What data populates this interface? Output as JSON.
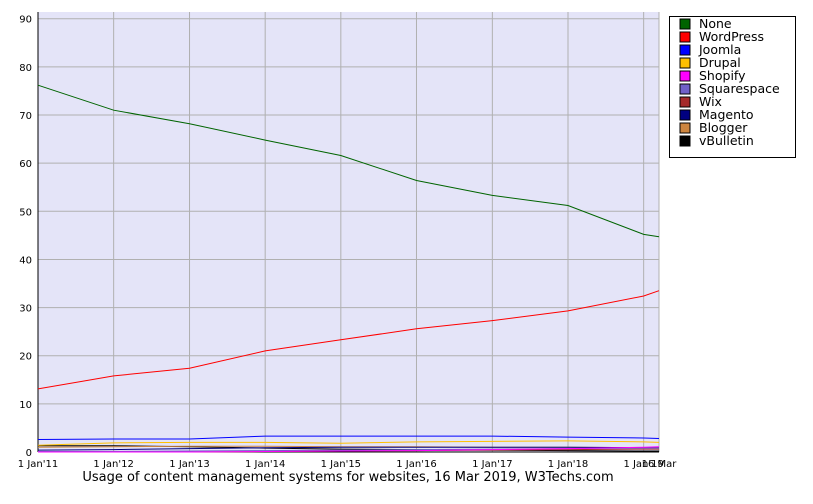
{
  "chart_data": {
    "type": "line",
    "title": "Usage of content management systems for websites, 16 Mar 2019, W3Techs.com",
    "x": [
      "2011-01-01",
      "2012-01-01",
      "2013-01-01",
      "2014-01-01",
      "2015-01-01",
      "2016-01-01",
      "2017-01-01",
      "2018-01-01",
      "2019-01-01",
      "2019-03-16"
    ],
    "xlim": [
      "2011-01-01",
      "2019-03-16"
    ],
    "xticks": [
      {
        "value": "2011-01-01",
        "label": "1 Jan'11"
      },
      {
        "value": "2012-01-01",
        "label": "1 Jan'12"
      },
      {
        "value": "2013-01-01",
        "label": "1 Jan'13"
      },
      {
        "value": "2014-01-01",
        "label": "1 Jan'14"
      },
      {
        "value": "2015-01-01",
        "label": "1 Jan'15"
      },
      {
        "value": "2016-01-01",
        "label": "1 Jan'16"
      },
      {
        "value": "2017-01-01",
        "label": "1 Jan'17"
      },
      {
        "value": "2018-01-01",
        "label": "1 Jan'18"
      },
      {
        "value": "2019-01-01",
        "label": "1 Jan'19"
      },
      {
        "value": "2019-03-16",
        "label": "16 Mar"
      }
    ],
    "ylim": [
      0,
      91.4
    ],
    "yticks": [
      0,
      10,
      20,
      30,
      40,
      50,
      60,
      70,
      80,
      90
    ],
    "grid": true,
    "legend": "right",
    "series": [
      {
        "name": "None",
        "color": "#006400",
        "values": [
          76.2,
          71.0,
          68.2,
          64.8,
          61.6,
          56.4,
          53.3,
          51.2,
          45.2,
          44.7
        ]
      },
      {
        "name": "WordPress",
        "color": "#ff0000",
        "values": [
          13.1,
          15.8,
          17.4,
          21.0,
          23.3,
          25.6,
          27.3,
          29.3,
          32.4,
          33.5
        ]
      },
      {
        "name": "Joomla",
        "color": "#0000ff",
        "values": [
          2.6,
          2.7,
          2.7,
          3.3,
          3.3,
          3.3,
          3.3,
          3.1,
          2.9,
          2.8
        ]
      },
      {
        "name": "Drupal",
        "color": "#ffc000",
        "values": [
          1.4,
          1.9,
          2.0,
          2.0,
          1.8,
          2.1,
          2.2,
          2.3,
          2.1,
          2.0
        ]
      },
      {
        "name": "Shopify",
        "color": "#ff00ff",
        "values": [
          0,
          0,
          0,
          0.1,
          0.2,
          0.3,
          0.5,
          0.7,
          1.0,
          1.1
        ]
      },
      {
        "name": "Squarespace",
        "color": "#7060c8",
        "values": [
          0.1,
          0.1,
          0.2,
          0.3,
          0.4,
          0.5,
          0.6,
          0.7,
          0.8,
          0.8
        ]
      },
      {
        "name": "Wix",
        "color": "#a52a2a",
        "values": [
          0,
          0,
          0,
          0.1,
          0.2,
          0.3,
          0.4,
          0.5,
          0.6,
          0.6
        ]
      },
      {
        "name": "Magento",
        "color": "#000080",
        "values": [
          0.4,
          0.5,
          0.7,
          0.9,
          1.0,
          1.0,
          1.0,
          1.0,
          0.9,
          0.9
        ]
      },
      {
        "name": "Blogger",
        "color": "#cd853f",
        "values": [
          1.0,
          1.1,
          1.2,
          1.2,
          1.1,
          1.1,
          1.0,
          1.0,
          0.9,
          0.9
        ]
      },
      {
        "name": "vBulletin",
        "color": "#000000",
        "values": [
          1.3,
          1.3,
          1.1,
          0.8,
          0.6,
          0.5,
          0.4,
          0.3,
          0.2,
          0.2
        ]
      }
    ]
  }
}
